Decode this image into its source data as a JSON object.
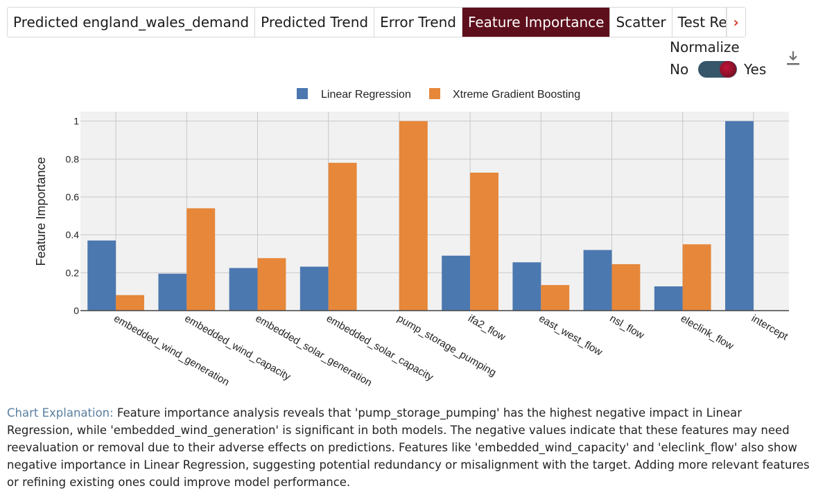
{
  "tabs": [
    {
      "label": "Predicted england_wales_demand",
      "active": false
    },
    {
      "label": "Predicted Trend",
      "active": false
    },
    {
      "label": "Error Trend",
      "active": false
    },
    {
      "label": "Feature Importance",
      "active": true
    },
    {
      "label": "Scatter",
      "active": false
    },
    {
      "label": "Test Re",
      "active": false
    }
  ],
  "tab_scroll_icon": "chevron-right-icon",
  "normalize": {
    "label": "Normalize",
    "off_label": "No",
    "on_label": "Yes",
    "value": true
  },
  "download_icon": "download-icon",
  "colors": {
    "linear": "#4c78b0",
    "xgb": "#e6873a",
    "active_tab": "#5e0f1c",
    "explanation_prefix": "#5a7fa0"
  },
  "chart_data": {
    "type": "bar",
    "categories": [
      "embedded_wind_generation",
      "embedded_wind_capacity",
      "embedded_solar_generation",
      "embedded_solar_capacity",
      "pump_storage_pumping",
      "ifa2_flow",
      "east_west_flow",
      "nsl_flow",
      "eleclink_flow",
      "intercept"
    ],
    "series": [
      {
        "name": "Linear Regression",
        "values": [
          0.37,
          0.195,
          0.225,
          0.232,
          0,
          0.29,
          0.255,
          0.32,
          0.128,
          1.0
        ]
      },
      {
        "name": "Xtreme Gradient Boosting",
        "values": [
          0.082,
          0.54,
          0.277,
          0.78,
          1.0,
          0.728,
          0.135,
          0.245,
          0.35,
          0
        ]
      }
    ],
    "ylabel": "Feature Importance",
    "xlabel": "",
    "ylim": [
      0,
      1.05
    ],
    "yticks": [
      0,
      0.2,
      0.4,
      0.6,
      0.8,
      1
    ],
    "ytick_labels": [
      "0",
      "0.2",
      "0.4",
      "0.6",
      "0.8",
      "1"
    ],
    "legend": "top-center",
    "grid": true
  },
  "explanation": {
    "prefix": "Chart Explanation:",
    "text": " Feature importance analysis reveals that 'pump_storage_pumping' has the highest negative impact in Linear Regression, while 'embedded_wind_generation' is significant in both models. The negative values indicate that these features may need reevaluation or removal due to their adverse effects on predictions. Features like 'embedded_wind_capacity' and 'eleclink_flow' also show negative importance in Linear Regression, suggesting potential redundancy or misalignment with the target. Adding more relevant features or refining existing ones could improve model performance."
  }
}
